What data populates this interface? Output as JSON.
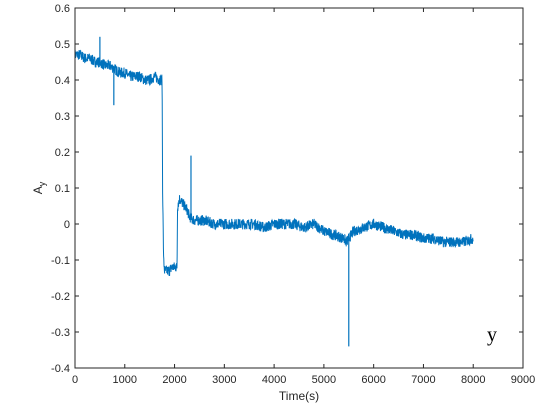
{
  "chart_data": {
    "type": "line",
    "title": "",
    "xlabel": "Time(s)",
    "ylabel": "A",
    "ylabel_subscript": "y",
    "xlim": [
      0,
      9000
    ],
    "ylim": [
      -0.4,
      0.6
    ],
    "xticks": [
      "0",
      "1000",
      "2000",
      "3000",
      "4000",
      "5000",
      "6000",
      "7000",
      "8000",
      "9000"
    ],
    "yticks": [
      "-0.4",
      "-0.3",
      "-0.2",
      "-0.1",
      "0",
      "0.1",
      "0.2",
      "0.3",
      "0.4",
      "0.5",
      "0.6"
    ],
    "grid": false,
    "line_color": "#0072BD",
    "annotation": "y",
    "series": [
      {
        "x": [
          0,
          100,
          200,
          300,
          400,
          500,
          600,
          700,
          800,
          900,
          1000,
          1100,
          1200,
          1300,
          1400,
          1500,
          1600,
          1700,
          1750,
          1760,
          1780,
          1800,
          1850,
          1900,
          1950,
          2000,
          2050,
          2060,
          2080,
          2100,
          2150,
          2200,
          2250,
          2300,
          2400,
          2500,
          2600,
          2800,
          3000,
          3200,
          3400,
          3600,
          3800,
          4000,
          4200,
          4400,
          4600,
          4800,
          5000,
          5200,
          5400,
          5450,
          5500,
          5550,
          5600,
          5800,
          6000,
          6200,
          6400,
          6600,
          6800,
          7000,
          7200,
          7400,
          7600,
          7800,
          8000
        ],
        "y": [
          0.47,
          0.47,
          0.46,
          0.46,
          0.45,
          0.45,
          0.44,
          0.44,
          0.43,
          0.42,
          0.42,
          0.41,
          0.41,
          0.41,
          0.4,
          0.4,
          0.41,
          0.4,
          0.4,
          0.1,
          -0.1,
          -0.13,
          -0.13,
          -0.13,
          -0.12,
          -0.12,
          -0.12,
          0.05,
          0.06,
          0.07,
          0.06,
          0.05,
          0.04,
          0.02,
          0.01,
          0.01,
          0.01,
          0.0,
          0.0,
          0.0,
          0.0,
          0.0,
          -0.01,
          0.0,
          0.0,
          0.0,
          -0.01,
          0.0,
          -0.02,
          -0.03,
          -0.04,
          -0.05,
          -0.04,
          -0.03,
          -0.02,
          -0.01,
          0.0,
          -0.01,
          -0.02,
          -0.03,
          -0.03,
          -0.04,
          -0.04,
          -0.05,
          -0.05,
          -0.05,
          -0.04
        ],
        "spikes": [
          {
            "x": 500,
            "y": 0.52
          },
          {
            "x": 780,
            "y": 0.33
          },
          {
            "x": 2330,
            "y": 0.19
          },
          {
            "x": 5500,
            "y": -0.34
          }
        ]
      }
    ]
  }
}
